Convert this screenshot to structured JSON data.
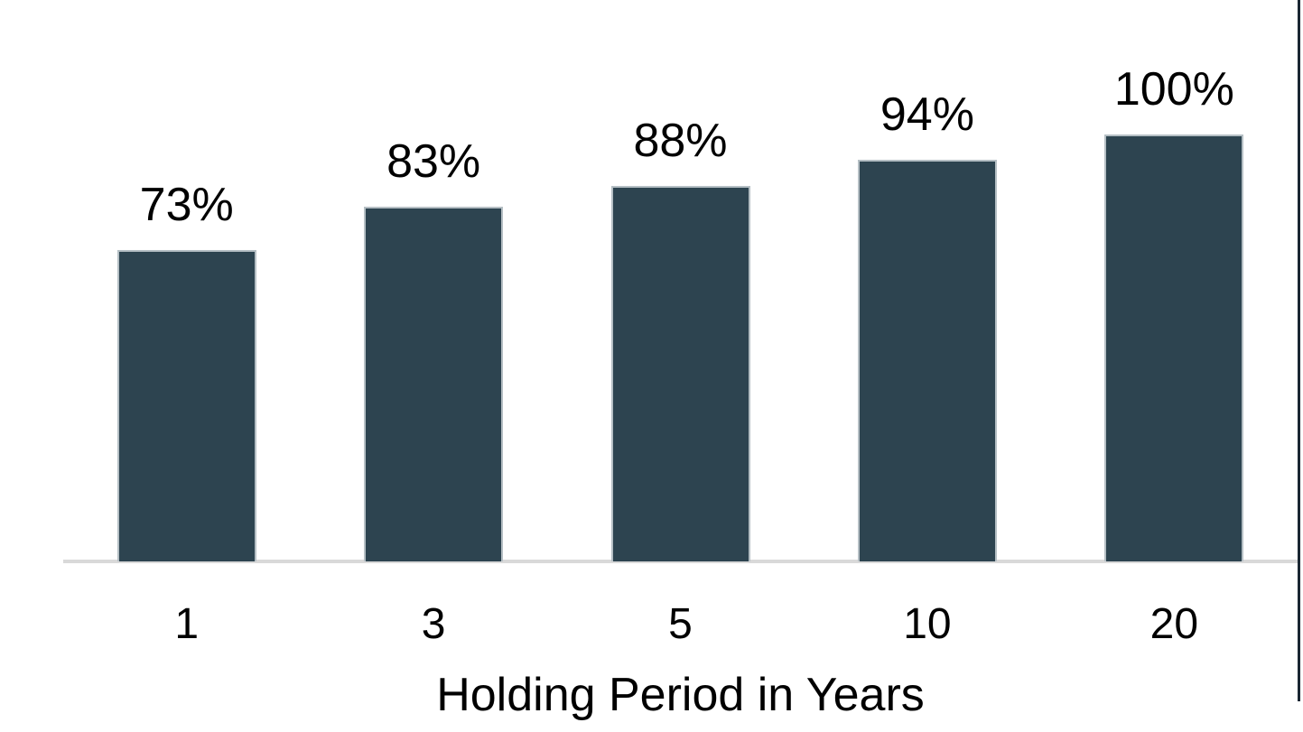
{
  "chart_data": {
    "type": "bar",
    "categories": [
      "1",
      "3",
      "5",
      "10",
      "20"
    ],
    "values": [
      73,
      83,
      88,
      94,
      100
    ],
    "data_labels": [
      "73%",
      "83%",
      "88%",
      "94%",
      "100%"
    ],
    "title": "",
    "xlabel": "Holding Period in Years",
    "ylabel": "",
    "ylim": [
      0,
      100
    ],
    "grid": false,
    "legend": false,
    "bar_color": "#2d4450",
    "bar_border_color": "#b5bfc4",
    "axis_line_color": "#d9d9d9",
    "label_color": "#000000"
  },
  "decorations": {
    "right_edge_line_color": "#1a2733"
  }
}
